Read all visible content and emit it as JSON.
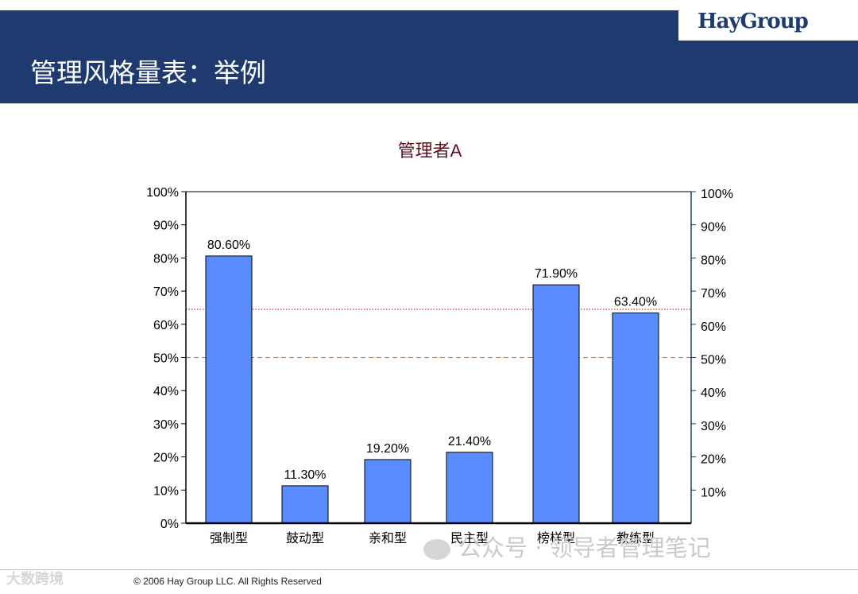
{
  "header": {
    "title": "管理风格量表：举例",
    "logo": "HayGroup"
  },
  "footer": {
    "copyright": "© 2006 Hay Group LLC. All Rights Reserved"
  },
  "watermarks": {
    "left": "大数跨境",
    "right": "公众号 · 领导者管理笔记"
  },
  "chart_data": {
    "type": "bar",
    "title": "管理者A",
    "categories": [
      "强制型",
      "鼓动型",
      "亲和型",
      "民主型",
      "榜样型",
      "教练型"
    ],
    "values": [
      80.6,
      11.3,
      19.2,
      21.4,
      71.9,
      63.4
    ],
    "value_labels": [
      "80.60%",
      "11.30%",
      "19.20%",
      "21.40%",
      "71.90%",
      "63.40%"
    ],
    "ylim": [
      0,
      100
    ],
    "left_ticks": [
      "0%",
      "10%",
      "20%",
      "30%",
      "40%",
      "50%",
      "60%",
      "70%",
      "80%",
      "90%",
      "100%"
    ],
    "right_ticks": [
      "10%",
      "20%",
      "30%",
      "40%",
      "50%",
      "60%",
      "70%",
      "80%",
      "90%",
      "100%"
    ],
    "reference_lines": [
      {
        "value": 50,
        "color": "#e07b20",
        "style": "dashed"
      },
      {
        "value": 64.5,
        "color": "#c0392b",
        "style": "dotted"
      }
    ],
    "bar_color": "#5b8cff",
    "title_color": "#5c0f1e"
  }
}
